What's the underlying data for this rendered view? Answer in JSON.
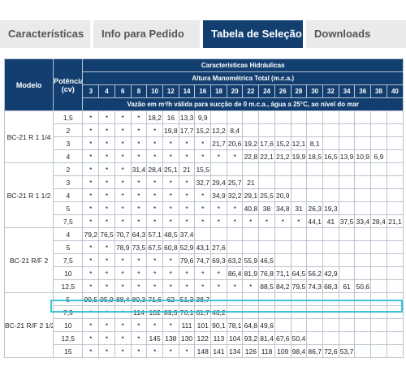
{
  "tabs": [
    {
      "label": "Características",
      "active": false
    },
    {
      "label": "Info para Pedido",
      "active": false
    },
    {
      "label": "Tabela de Seleção",
      "active": true
    },
    {
      "label": "Downloads",
      "active": false
    }
  ],
  "table": {
    "col_modelo": "Modelo",
    "col_potencia": "Potência (cv)",
    "group_title": "Características Hidráulicas",
    "altura_title": "Altura Manométrica Total (m.c.a.)",
    "heights": [
      "3",
      "4",
      "6",
      "8",
      "10",
      "12",
      "14",
      "16",
      "18",
      "20",
      "22",
      "24",
      "26",
      "28",
      "30",
      "32",
      "34",
      "36",
      "38",
      "40"
    ],
    "vazao_note": "Vazão em m³/h válida para sucção de 0 m.c.a., água a 25°C, ao nível do mar",
    "models": [
      {
        "name": "BC-21 R 1 1/4",
        "rows": [
          {
            "pot": "1,5",
            "vals": [
              "*",
              "*",
              "*",
              "*",
              "18,2",
              "16",
              "13,3",
              "9,9",
              "",
              "",
              "",
              "",
              "",
              "",
              "",
              "",
              "",
              "",
              "",
              ""
            ]
          },
          {
            "pot": "2",
            "vals": [
              "*",
              "*",
              "*",
              "*",
              "*",
              "19,8",
              "17,7",
              "15,2",
              "12,2",
              "8,4",
              "",
              "",
              "",
              "",
              "",
              "",
              "",
              "",
              "",
              ""
            ]
          },
          {
            "pot": "3",
            "vals": [
              "*",
              "*",
              "*",
              "*",
              "*",
              "*",
              "*",
              "*",
              "21,7",
              "20,6",
              "19,2",
              "17,6",
              "15,2",
              "12,1",
              "8,1",
              "",
              "",
              "",
              "",
              ""
            ]
          },
          {
            "pot": "4",
            "vals": [
              "*",
              "*",
              "*",
              "*",
              "*",
              "*",
              "*",
              "*",
              "*",
              "*",
              "22,8",
              "22,1",
              "21,2",
              "19,9",
              "18,5",
              "16,5",
              "13,9",
              "10,9",
              "6,9",
              ""
            ]
          }
        ]
      },
      {
        "name": "BC-21 R 1 1/2",
        "rows": [
          {
            "pot": "2",
            "vals": [
              "*",
              "*",
              "*",
              "31,4",
              "28,4",
              "25,1",
              "21",
              "15,5",
              "",
              "",
              "",
              "",
              "",
              "",
              "",
              "",
              "",
              "",
              "",
              ""
            ]
          },
          {
            "pot": "3",
            "vals": [
              "*",
              "*",
              "*",
              "*",
              "*",
              "*",
              "*",
              "32,7",
              "29,4",
              "25,7",
              "21",
              "",
              "",
              "",
              "",
              "",
              "",
              "",
              "",
              ""
            ]
          },
          {
            "pot": "4",
            "vals": [
              "*",
              "*",
              "*",
              "*",
              "*",
              "*",
              "*",
              "*",
              "34,9",
              "32,2",
              "29,1",
              "25,5",
              "20,9",
              "",
              "",
              "",
              "",
              "",
              "",
              ""
            ]
          },
          {
            "pot": "5",
            "vals": [
              "*",
              "*",
              "*",
              "*",
              "*",
              "*",
              "*",
              "*",
              "*",
              "*",
              "40,8",
              "38",
              "34,8",
              "31",
              "26,3",
              "19,3",
              "",
              "",
              "",
              ""
            ]
          },
          {
            "pot": "7,5",
            "vals": [
              "*",
              "*",
              "*",
              "*",
              "*",
              "*",
              "*",
              "*",
              "*",
              "*",
              "*",
              "*",
              "*",
              "*",
              "44,1",
              "41",
              "37,5",
              "33,4",
              "28,4",
              "21,1"
            ]
          }
        ]
      },
      {
        "name": "BC-21 R/F 2",
        "rows": [
          {
            "pot": "4",
            "vals": [
              "79,2",
              "76,5",
              "70,7",
              "64,3",
              "57,1",
              "48,5",
              "37,4",
              "",
              "",
              "",
              "",
              "",
              "",
              "",
              "",
              "",
              "",
              "",
              "",
              ""
            ]
          },
          {
            "pot": "5",
            "vals": [
              "*",
              "*",
              "78,9",
              "73,5",
              "67,5",
              "60,8",
              "52,9",
              "43,1",
              "27,6",
              "",
              "",
              "",
              "",
              "",
              "",
              "",
              "",
              "",
              "",
              ""
            ]
          },
          {
            "pot": "7,5",
            "vals": [
              "*",
              "*",
              "*",
              "*",
              "*",
              "*",
              "79,6",
              "74,7",
              "69,3",
              "63,2",
              "55,9",
              "46,5",
              "",
              "",
              "",
              "",
              "",
              "",
              "",
              ""
            ]
          },
          {
            "pot": "10",
            "vals": [
              "*",
              "*",
              "*",
              "*",
              "*",
              "*",
              "*",
              "*",
              "*",
              "86,4",
              "81,9",
              "76,8",
              "71,1",
              "64,5",
              "56,2",
              "42,9",
              "",
              "",
              "",
              ""
            ]
          },
          {
            "pot": "12,5",
            "vals": [
              "*",
              "*",
              "*",
              "*",
              "*",
              "*",
              "*",
              "*",
              "*",
              "*",
              "*",
              "88,5",
              "84,2",
              "79,5",
              "74,3",
              "68,3",
              "61",
              "50,6",
              "",
              ""
            ]
          }
        ]
      },
      {
        "name": "BC-21 R/F 2 1/2",
        "rows": [
          {
            "pot": "5",
            "vals": [
              "99,5",
              "95,9",
              "88,4",
              "80,3",
              "71,6",
              "62",
              "51,3",
              "38,7",
              "",
              "",
              "",
              "",
              "",
              "",
              "",
              "",
              "",
              "",
              "",
              ""
            ]
          },
          {
            "pot": "7,5",
            "vals": [
              "*",
              "*",
              "*",
              "114",
              "102",
              "89,5",
              "76,1",
              "61,7",
              "46,2",
              "",
              "",
              "",
              "",
              "",
              "",
              "",
              "",
              "",
              "",
              ""
            ],
            "highlight": true
          },
          {
            "pot": "10",
            "vals": [
              "*",
              "*",
              "*",
              "*",
              "*",
              "*",
              "111",
              "101",
              "90,1",
              "78,1",
              "64,8",
              "49,6",
              "",
              "",
              "",
              "",
              "",
              "",
              "",
              ""
            ]
          },
          {
            "pot": "12,5",
            "vals": [
              "*",
              "*",
              "*",
              "*",
              "145",
              "138",
              "130",
              "122",
              "113",
              "104",
              "93,2",
              "81,4",
              "67,6",
              "50,4",
              "",
              "",
              "",
              "",
              "",
              ""
            ]
          },
          {
            "pot": "15",
            "vals": [
              "*",
              "*",
              "*",
              "*",
              "*",
              "*",
              "*",
              "148",
              "141",
              "134",
              "126",
              "118",
              "109",
              "98,4",
              "86,7",
              "72,6",
              "53,7",
              "",
              "",
              ""
            ]
          }
        ]
      }
    ]
  },
  "colors": {
    "header_bg": "#123f70",
    "grid": "#b9c3d0",
    "highlight": "#3fc3d6",
    "tab_inactive": "#eaeaea"
  }
}
